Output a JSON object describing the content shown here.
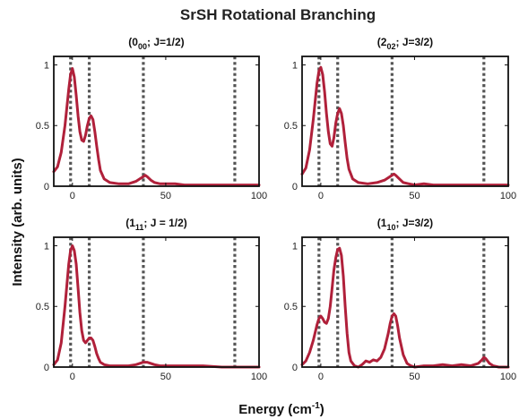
{
  "figure": {
    "title": "SrSH Rotational Branching",
    "xlabel_main": "Energy (cm",
    "xlabel_sup": "-1",
    "xlabel_close": ")",
    "ylabel": "Intensity (arb. units)"
  },
  "chart_data": [
    {
      "type": "line",
      "title_pre": "(0",
      "title_sub": "00",
      "title_post": "; J=1/2)",
      "xlim": [
        -10,
        100
      ],
      "ylim": [
        0,
        1.07
      ],
      "xticks": [
        "0",
        "50",
        "100"
      ],
      "yticks": [
        "0",
        "0.5",
        "1"
      ],
      "vlines": [
        -1,
        9,
        38,
        87
      ],
      "series": [
        {
          "color": "#b0203a",
          "x": [
            -10,
            -8,
            -6,
            -4,
            -2,
            -1,
            0,
            1,
            2,
            3,
            4,
            5,
            6,
            7,
            8,
            9,
            10,
            11,
            12,
            13,
            14,
            15,
            17,
            20,
            25,
            30,
            34,
            36,
            38,
            39,
            40,
            42,
            44,
            47,
            50,
            55,
            60,
            70,
            80,
            90,
            100
          ],
          "y": [
            0.12,
            0.16,
            0.28,
            0.5,
            0.8,
            0.92,
            0.97,
            0.9,
            0.75,
            0.58,
            0.45,
            0.38,
            0.37,
            0.42,
            0.5,
            0.56,
            0.58,
            0.55,
            0.45,
            0.33,
            0.22,
            0.13,
            0.06,
            0.03,
            0.02,
            0.02,
            0.04,
            0.06,
            0.08,
            0.09,
            0.08,
            0.05,
            0.03,
            0.02,
            0.02,
            0.02,
            0.01,
            0.01,
            0.01,
            0.01,
            0.01
          ]
        }
      ]
    },
    {
      "type": "line",
      "title_pre": "(2",
      "title_sub": "02",
      "title_post": "; J=3/2)",
      "xlim": [
        -10,
        100
      ],
      "ylim": [
        0,
        1.07
      ],
      "xticks": [
        "0",
        "50",
        "100"
      ],
      "yticks": [
        "0",
        "0.5",
        "1"
      ],
      "vlines": [
        -1,
        9,
        38,
        87
      ],
      "series": [
        {
          "color": "#b0203a",
          "x": [
            -10,
            -8,
            -6,
            -4,
            -2,
            -1,
            0,
            1,
            2,
            3,
            4,
            5,
            6,
            7,
            8,
            9,
            10,
            11,
            12,
            13,
            14,
            15,
            17,
            20,
            25,
            30,
            34,
            36,
            38,
            39,
            40,
            42,
            44,
            47,
            50,
            55,
            60,
            70,
            80,
            90,
            100
          ],
          "y": [
            0.1,
            0.15,
            0.3,
            0.55,
            0.85,
            0.95,
            0.98,
            0.92,
            0.78,
            0.6,
            0.45,
            0.35,
            0.33,
            0.4,
            0.52,
            0.6,
            0.64,
            0.6,
            0.5,
            0.36,
            0.23,
            0.14,
            0.06,
            0.03,
            0.02,
            0.03,
            0.05,
            0.07,
            0.09,
            0.1,
            0.09,
            0.06,
            0.03,
            0.02,
            0.01,
            0.02,
            0.01,
            0.01,
            0.01,
            0.01,
            0.01
          ]
        }
      ]
    },
    {
      "type": "line",
      "title_pre": "(1",
      "title_sub": "11",
      "title_post": "; J = 1/2)",
      "xlim": [
        -10,
        100
      ],
      "ylim": [
        0,
        1.07
      ],
      "xticks": [
        "0",
        "50",
        "100"
      ],
      "yticks": [
        "0",
        "0.5",
        "1"
      ],
      "vlines": [
        -1,
        9,
        38,
        87
      ],
      "series": [
        {
          "color": "#b0203a",
          "x": [
            -10,
            -8,
            -6,
            -4,
            -2,
            -1,
            0,
            1,
            2,
            3,
            4,
            5,
            6,
            7,
            8,
            9,
            10,
            11,
            12,
            13,
            14,
            15,
            17,
            20,
            25,
            30,
            34,
            36,
            38,
            39,
            40,
            42,
            44,
            47,
            50,
            55,
            60,
            70,
            80,
            90,
            100
          ],
          "y": [
            0.02,
            0.06,
            0.2,
            0.5,
            0.85,
            0.96,
            1.0,
            0.96,
            0.85,
            0.65,
            0.45,
            0.3,
            0.22,
            0.2,
            0.22,
            0.24,
            0.24,
            0.22,
            0.17,
            0.11,
            0.07,
            0.04,
            0.02,
            0.01,
            0.01,
            0.01,
            0.02,
            0.03,
            0.04,
            0.04,
            0.04,
            0.03,
            0.02,
            0.01,
            0.01,
            0.01,
            0.01,
            0.01,
            0.0,
            0.0,
            0.0
          ]
        }
      ]
    },
    {
      "type": "line",
      "title_pre": "(1",
      "title_sub": "10",
      "title_post": "; J=3/2)",
      "xlim": [
        -10,
        100
      ],
      "ylim": [
        0,
        1.07
      ],
      "xticks": [
        "0",
        "50",
        "100"
      ],
      "yticks": [
        "0",
        "0.5",
        "1"
      ],
      "vlines": [
        -1,
        9,
        38,
        87
      ],
      "series": [
        {
          "color": "#b0203a",
          "x": [
            -10,
            -8,
            -6,
            -4,
            -2,
            -1,
            0,
            1,
            2,
            3,
            4,
            5,
            6,
            7,
            8,
            9,
            10,
            11,
            12,
            13,
            14,
            15,
            16,
            18,
            20,
            22,
            24,
            26,
            28,
            30,
            32,
            34,
            36,
            37,
            38,
            39,
            40,
            41,
            42,
            44,
            46,
            48,
            50,
            55,
            60,
            65,
            70,
            75,
            80,
            84,
            86,
            87,
            88,
            90,
            92,
            95,
            100
          ],
          "y": [
            0.02,
            0.05,
            0.12,
            0.22,
            0.35,
            0.4,
            0.42,
            0.4,
            0.37,
            0.36,
            0.4,
            0.5,
            0.65,
            0.8,
            0.9,
            0.97,
            0.98,
            0.92,
            0.75,
            0.5,
            0.28,
            0.12,
            0.05,
            0.01,
            0.0,
            0.02,
            0.05,
            0.04,
            0.06,
            0.05,
            0.08,
            0.15,
            0.28,
            0.36,
            0.42,
            0.44,
            0.42,
            0.34,
            0.24,
            0.1,
            0.03,
            0.01,
            0.0,
            0.01,
            0.01,
            0.02,
            0.01,
            0.02,
            0.01,
            0.03,
            0.06,
            0.08,
            0.07,
            0.03,
            0.01,
            0.0,
            0.0
          ]
        }
      ]
    }
  ]
}
